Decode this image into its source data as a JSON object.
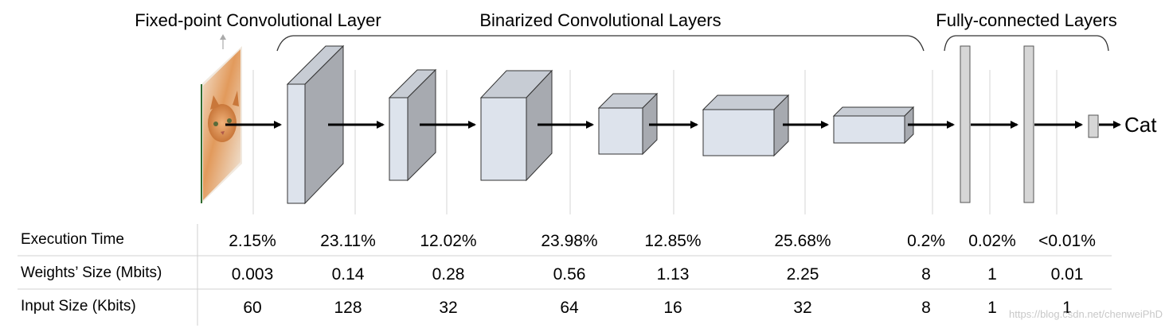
{
  "headers": {
    "fixed": "Fixed-point Convolutional Layer",
    "binarized": "Binarized Convolutional Layers",
    "fully_connected": "Fully-connected Layers"
  },
  "output_label": "Cat",
  "rows": [
    {
      "label": "Execution Time",
      "values": [
        "2.15%",
        "23.11%",
        "12.02%",
        "23.98%",
        "12.85%",
        "25.68%",
        "0.2%",
        "0.02%",
        "<0.01%"
      ]
    },
    {
      "label": "Weights’ Size (Mbits)",
      "values": [
        "0.003",
        "0.14",
        "0.28",
        "0.56",
        "1.13",
        "2.25",
        "8",
        "1",
        "0.01"
      ]
    },
    {
      "label": "Input Size (Kbits)",
      "values": [
        "60",
        "128",
        "32",
        "64",
        "16",
        "32",
        "8",
        "1",
        "1"
      ]
    }
  ],
  "watermark": "https://blog.csdn.net/chenweiPhD",
  "colors": {
    "block_front": "#dde3ec",
    "block_side": "#a7aab0",
    "block_top": "#c7ccd4",
    "fc_fill": "#d6d6d6",
    "image_orange": "#e29a5c"
  },
  "icons": {
    "input_image": "kitten-photo-icon"
  }
}
